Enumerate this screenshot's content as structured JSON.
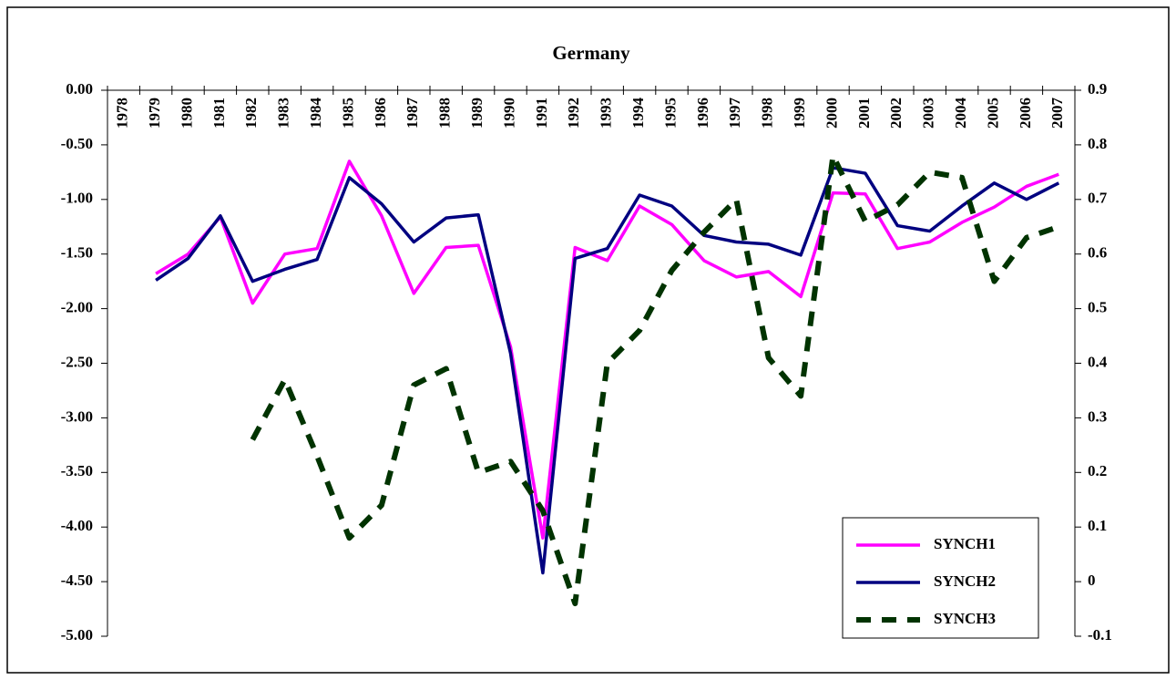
{
  "chart_data": {
    "type": "line",
    "title": "Germany",
    "categories": [
      "1978",
      "1979",
      "1980",
      "1981",
      "1982",
      "1983",
      "1984",
      "1985",
      "1986",
      "1987",
      "1988",
      "1989",
      "1990",
      "1991",
      "1992",
      "1993",
      "1994",
      "1995",
      "1996",
      "1997",
      "1998",
      "1999",
      "2000",
      "2001",
      "2002",
      "2003",
      "2004",
      "2005",
      "2006",
      "2007"
    ],
    "series": [
      {
        "name": "SYNCH1",
        "color": "#ff00ff",
        "style": "solid",
        "axis": "y",
        "values": [
          null,
          -1.68,
          -1.5,
          -1.16,
          -1.95,
          -1.5,
          -1.45,
          -0.65,
          -1.15,
          -1.86,
          -1.44,
          -1.42,
          -2.35,
          -4.1,
          -1.44,
          -1.56,
          -1.06,
          -1.23,
          -1.56,
          -1.71,
          -1.66,
          -1.89,
          -0.94,
          -0.95,
          -1.45,
          -1.39,
          -1.21,
          -1.07,
          -0.88,
          -0.77
        ]
      },
      {
        "name": "SYNCH2",
        "color": "#000080",
        "style": "solid",
        "axis": "y",
        "values": [
          null,
          -1.74,
          -1.54,
          -1.15,
          -1.75,
          -1.64,
          -1.55,
          -0.8,
          -1.04,
          -1.39,
          -1.17,
          -1.14,
          -2.41,
          -4.42,
          -1.54,
          -1.45,
          -0.96,
          -1.06,
          -1.33,
          -1.39,
          -1.41,
          -1.51,
          -0.71,
          -0.76,
          -1.24,
          -1.29,
          -1.06,
          -0.85,
          -1.0,
          -0.85
        ]
      },
      {
        "name": "SYNCH3",
        "color": "#003300",
        "style": "dashed",
        "axis": "y2",
        "values": [
          null,
          null,
          null,
          null,
          0.26,
          0.37,
          0.23,
          0.08,
          0.14,
          0.36,
          0.39,
          0.2,
          0.22,
          0.13,
          -0.04,
          0.4,
          0.46,
          0.57,
          0.64,
          0.7,
          0.41,
          0.34,
          0.78,
          0.66,
          0.69,
          0.75,
          0.74,
          0.55,
          0.63,
          0.65
        ]
      }
    ],
    "ylim": [
      -5,
      0
    ],
    "yticks": [
      {
        "value": 0,
        "label": "0.00"
      },
      {
        "value": -0.5,
        "label": "-0.50"
      },
      {
        "value": -1,
        "label": "-1.00"
      },
      {
        "value": -1.5,
        "label": "-1.50"
      },
      {
        "value": -2,
        "label": "-2.00"
      },
      {
        "value": -2.5,
        "label": "-2.50"
      },
      {
        "value": -3,
        "label": "-3.00"
      },
      {
        "value": -3.5,
        "label": "-3.50"
      },
      {
        "value": -4,
        "label": "-4.00"
      },
      {
        "value": -4.5,
        "label": "-4.50"
      },
      {
        "value": -5,
        "label": "-5.00"
      }
    ],
    "y2lim": [
      -0.1,
      0.9
    ],
    "y2ticks": [
      0.9,
      0.8,
      0.7,
      0.6,
      0.5,
      0.4,
      0.3,
      0.2,
      0.1,
      0,
      -0.1
    ],
    "legend": "lower right"
  }
}
